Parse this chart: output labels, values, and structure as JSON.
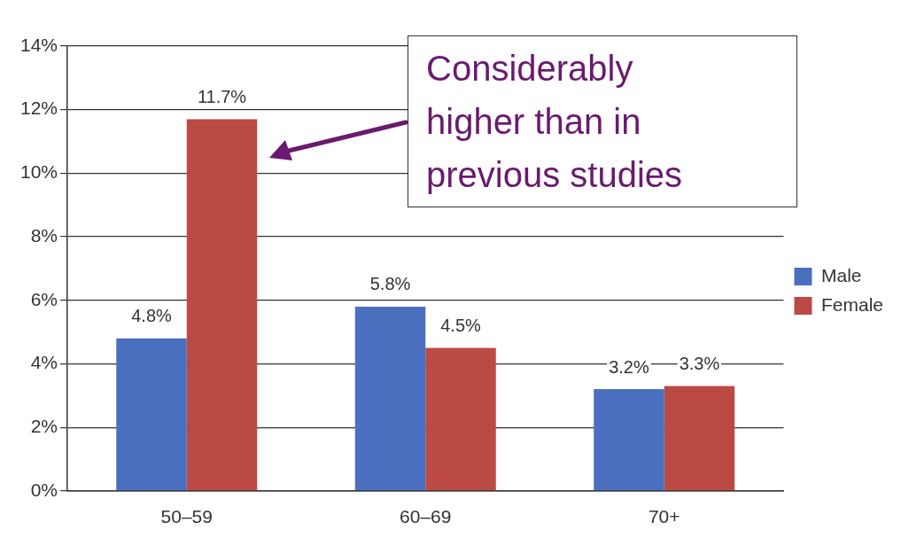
{
  "chart_data": {
    "type": "bar",
    "categories": [
      "50–59",
      "60–69",
      "70+"
    ],
    "series": [
      {
        "name": "Male",
        "color": "#4a6fbe",
        "values": [
          4.8,
          5.8,
          3.2
        ],
        "value_labels": [
          "4.8%",
          "5.8%",
          "3.2%"
        ]
      },
      {
        "name": "Female",
        "color": "#bb4a45",
        "values": [
          11.7,
          4.5,
          3.3
        ],
        "value_labels": [
          "11.7%",
          "4.5%",
          "3.3%"
        ]
      }
    ],
    "ylim": [
      0,
      14
    ],
    "yticks": [
      {
        "value": 0,
        "label": "0%"
      },
      {
        "value": 2,
        "label": "2%"
      },
      {
        "value": 4,
        "label": "4%"
      },
      {
        "value": 6,
        "label": "6%"
      },
      {
        "value": 8,
        "label": "8%"
      },
      {
        "value": 10,
        "label": "10%"
      },
      {
        "value": 12,
        "label": "12%"
      },
      {
        "value": 14,
        "label": "14%"
      }
    ],
    "grid": "y",
    "legend": "right",
    "annotations": [
      "Considerably higher than in previous studies"
    ]
  }
}
